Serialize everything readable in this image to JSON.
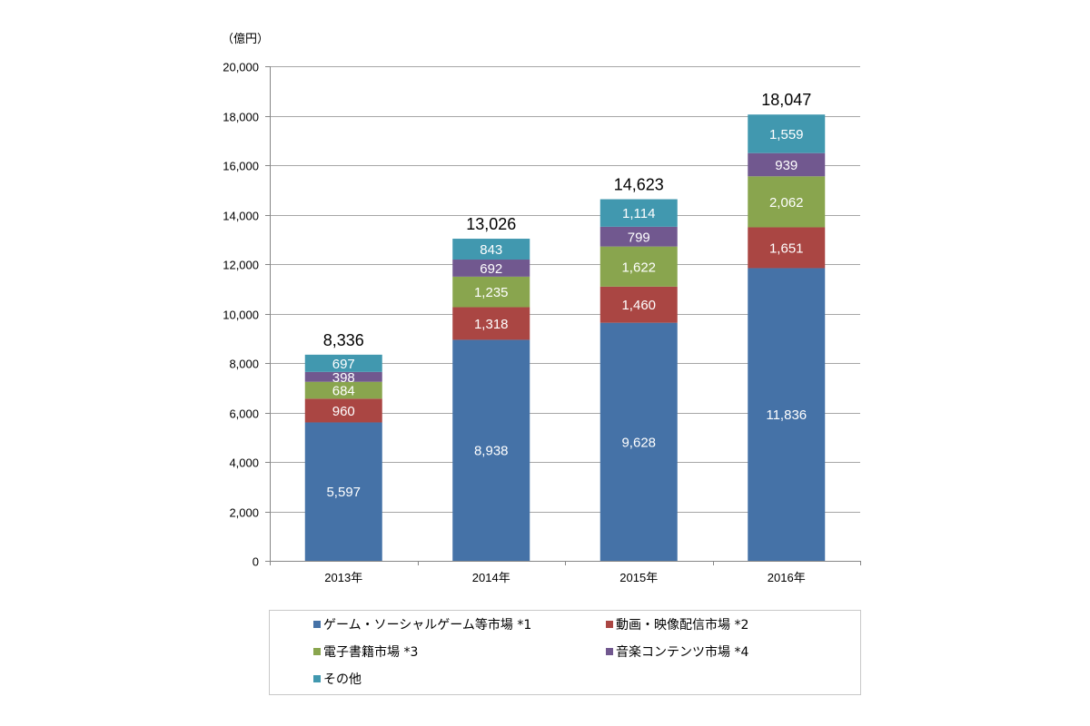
{
  "chart_data": {
    "type": "bar",
    "stacked": true,
    "title": "",
    "unit_label": "（億円）",
    "xlabel": "",
    "ylabel": "",
    "ylim": [
      0,
      20000
    ],
    "yticks": [
      0,
      2000,
      4000,
      6000,
      8000,
      10000,
      12000,
      14000,
      16000,
      18000,
      20000
    ],
    "ytick_labels": [
      "0",
      "2,000",
      "4,000",
      "6,000",
      "8,000",
      "10,000",
      "12,000",
      "14,000",
      "16,000",
      "18,000",
      "20,000"
    ],
    "grid": true,
    "categories": [
      "2013年",
      "2014年",
      "2015年",
      "2016年"
    ],
    "series": [
      {
        "name": "ゲーム・ソーシャルゲーム等市場 *1",
        "color": "#4572a7",
        "values": [
          5597,
          8938,
          9628,
          11836
        ],
        "labels": [
          "5,597",
          "8,938",
          "9,628",
          "11,836"
        ]
      },
      {
        "name": "動画・映像配信市場 *2",
        "color": "#aa4643",
        "values": [
          960,
          1318,
          1460,
          1651
        ],
        "labels": [
          "960",
          "1,318",
          "1,460",
          "1,651"
        ]
      },
      {
        "name": "電子書籍市場 *3",
        "color": "#89a54e",
        "values": [
          684,
          1235,
          1622,
          2062
        ],
        "labels": [
          "684",
          "1,235",
          "1,622",
          "2,062"
        ]
      },
      {
        "name": "音楽コンテンツ市場 *4",
        "color": "#71588f",
        "values": [
          398,
          692,
          799,
          939
        ],
        "labels": [
          "398",
          "692",
          "799",
          "939"
        ]
      },
      {
        "name": "その他",
        "color": "#4198af",
        "values": [
          697,
          843,
          1114,
          1559
        ],
        "labels": [
          "697",
          "843",
          "1,114",
          "1,559"
        ]
      }
    ],
    "totals": [
      8336,
      13026,
      14623,
      18047
    ],
    "total_labels": [
      "8,336",
      "13,026",
      "14,623",
      "18,047"
    ],
    "legend_position": "bottom"
  }
}
